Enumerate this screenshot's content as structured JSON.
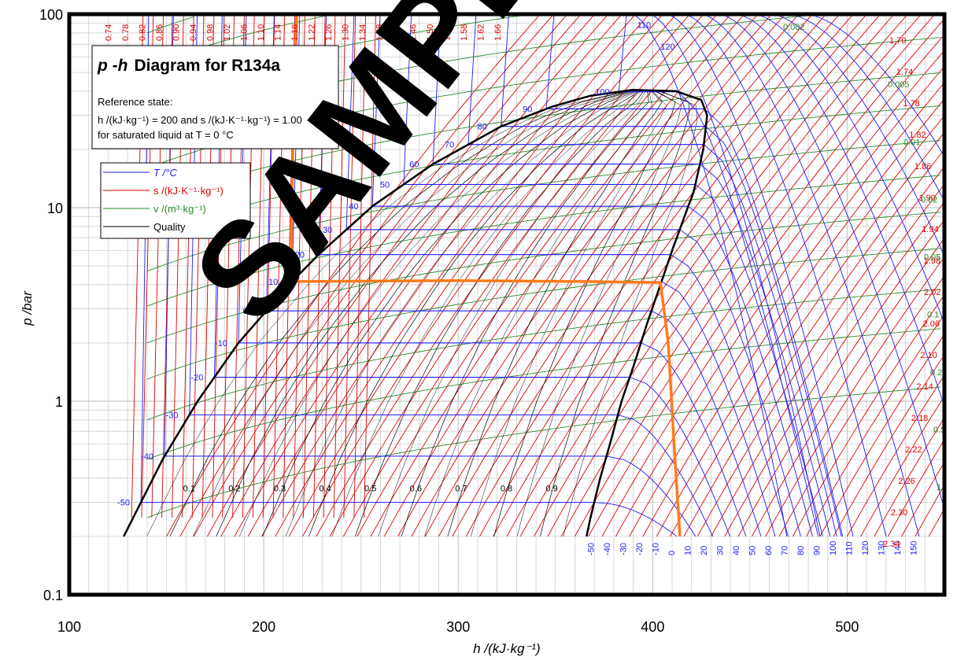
{
  "chart_data": {
    "type": "line",
    "title": "p-h  Diagram for R134a",
    "title_symbol": "p -h",
    "title_rest": "Diagram for R134a",
    "reference_lines": [
      "Reference state:",
      "h /(kJ·kg⁻¹) = 200 and s /(kJ·K⁻¹·kg⁻¹) = 1.00",
      "for saturated liquid at T = 0 °C"
    ],
    "xlabel": "h /(kJ·kg⁻¹)",
    "ylabel": "p /bar",
    "xlim": [
      100,
      550
    ],
    "ylim": [
      0.1,
      100
    ],
    "y_scale": "log",
    "x_ticks": [
      100,
      200,
      300,
      400,
      500
    ],
    "x_tick_labels": [
      "100",
      "200",
      "300",
      "400",
      "500"
    ],
    "y_ticks": [
      0.1,
      1,
      10,
      100
    ],
    "y_tick_labels": [
      "0.1",
      "1",
      "10",
      "100"
    ],
    "grid": true,
    "legend_position": "top-left",
    "legend": [
      {
        "label": "T /°C",
        "color": "#1a1aff"
      },
      {
        "label": "s /(kJ·K⁻¹·kg⁻¹)",
        "color": "#e00000"
      },
      {
        "label": "v /(m³·kg⁻¹)",
        "color": "#2a8a2a"
      },
      {
        "label": "Quality",
        "color": "#000000"
      }
    ],
    "saturation_dome": {
      "critical_point": {
        "h": 389.6,
        "p": 40.6
      },
      "liquid_line": [
        {
          "h": 128,
          "p": 0.2
        },
        {
          "h": 148,
          "p": 0.5
        },
        {
          "h": 166,
          "p": 1.0
        },
        {
          "h": 187,
          "p": 2.0
        },
        {
          "h": 214,
          "p": 4.1
        },
        {
          "h": 228,
          "p": 5.7
        },
        {
          "h": 256,
          "p": 10.2
        },
        {
          "h": 287,
          "p": 16.8
        },
        {
          "h": 322,
          "p": 26.3
        },
        {
          "h": 348,
          "p": 33.2
        },
        {
          "h": 368,
          "p": 37.9
        },
        {
          "h": 389.6,
          "p": 40.6
        }
      ],
      "vapor_line": [
        {
          "h": 389.6,
          "p": 40.6
        },
        {
          "h": 412,
          "p": 40.0
        },
        {
          "h": 425,
          "p": 36.0
        },
        {
          "h": 428,
          "p": 30.0
        },
        {
          "h": 426,
          "p": 20.0
        },
        {
          "h": 421,
          "p": 12.0
        },
        {
          "h": 418,
          "p": 10.0
        },
        {
          "h": 410,
          "p": 6.0
        },
        {
          "h": 404,
          "p": 4.0
        },
        {
          "h": 397,
          "p": 2.5
        },
        {
          "h": 390,
          "p": 1.5
        },
        {
          "h": 384,
          "p": 1.0
        },
        {
          "h": 378,
          "p": 0.6
        },
        {
          "h": 373,
          "p": 0.4
        },
        {
          "h": 368,
          "p": 0.25
        },
        {
          "h": 366,
          "p": 0.2
        }
      ]
    },
    "isotherms": [
      {
        "T": "-50",
        "p": 0.3
      },
      {
        "T": "-40",
        "p": 0.52
      },
      {
        "T": "-30",
        "p": 0.85
      },
      {
        "T": "-20",
        "p": 1.33
      },
      {
        "T": "-10",
        "p": 2.0
      },
      {
        "T": "0",
        "p": 2.93
      },
      {
        "T": "10",
        "p": 4.15
      },
      {
        "T": "20",
        "p": 5.72
      },
      {
        "T": "30",
        "p": 7.7
      },
      {
        "T": "40",
        "p": 10.17
      },
      {
        "T": "50",
        "p": 13.18
      },
      {
        "T": "60",
        "p": 16.8
      },
      {
        "T": "70",
        "p": 21.2
      },
      {
        "T": "80",
        "p": 26.3
      },
      {
        "T": "90",
        "p": 32.4
      },
      {
        "T": "100",
        "p": 39.7
      }
    ],
    "isotherm_extra_labels": [
      "110",
      "120"
    ],
    "isotherm_bottom_labels": [
      "-50",
      "-40",
      "-30",
      "-20",
      "-10",
      "0",
      "10",
      "20",
      "30",
      "40",
      "50",
      "60",
      "70",
      "80",
      "90",
      "100",
      "110",
      "120",
      "130",
      "140",
      "150"
    ],
    "entropy_labels_top": [
      "0.74",
      "0.78",
      "0.82",
      "0.86",
      "0.90",
      "0.94",
      "0.98",
      "1.02",
      "1.06",
      "1.10",
      "1.14",
      "1.18",
      "1.22",
      "1.26",
      "1.30",
      "1.34",
      "1.38",
      "1.42",
      "1.46",
      "1.50",
      "1.54",
      "1.58",
      "1.62",
      "1.66"
    ],
    "entropy_labels_right": [
      "1.70",
      "1.74",
      "1.78",
      "1.82",
      "1.86",
      "1.90",
      "1.94",
      "1.98",
      "2.02",
      "2.06",
      "2.10",
      "2.14",
      "2.18",
      "2.22",
      "2.26",
      "2.30",
      "2.34"
    ],
    "specific_volume_labels": [
      "0.002",
      "0.005",
      "0.01",
      "0.02",
      "0.05",
      "0.1",
      "0.2",
      "0.5",
      "1"
    ],
    "quality_labels": [
      "0.1",
      "0.2",
      "0.3",
      "0.4",
      "0.5",
      "0.6",
      "0.7",
      "0.8",
      "0.9"
    ],
    "cycle_overlay": {
      "color": "#ff7a1a",
      "points": [
        {
          "h": 217,
          "p": 100
        },
        {
          "h": 215,
          "p": 22
        },
        {
          "h": 214,
          "p": 4.15
        },
        {
          "h": 300,
          "p": 4.2
        },
        {
          "h": 370,
          "p": 4.15
        },
        {
          "h": 404,
          "p": 4.1
        },
        {
          "h": 408,
          "p": 2.0
        },
        {
          "h": 411,
          "p": 0.6
        },
        {
          "h": 414,
          "p": 0.2
        }
      ]
    },
    "watermark": "SAMPLE"
  },
  "colors": {
    "isotherm": "#1a1aff",
    "isentrope": "#e00000",
    "isochore": "#2a8a2a",
    "quality": "#000000",
    "grid": "#c8c8c8",
    "cycle": "#ff7a1a"
  }
}
